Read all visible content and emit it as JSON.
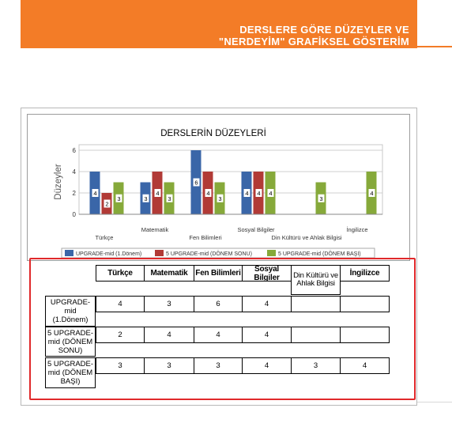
{
  "banner": {
    "line1": "DERSLERE GÖRE DÜZEYLER VE",
    "line2": "\"NERDEYİM\" GRAFİKSEL GÖSTERİM"
  },
  "colors": {
    "banner": "#f37c27",
    "series1": "#3a66a8",
    "series2": "#b13a36",
    "series3": "#86a93a",
    "highlight": "#e0292b"
  },
  "chart_data": {
    "type": "bar",
    "title": "DERSLERİN DÜZEYLERİ",
    "ylabel": "Düzeyler",
    "xlabel": "",
    "ylim": [
      0,
      6
    ],
    "yticks": [
      0,
      2,
      4,
      6
    ],
    "grid": true,
    "legend_position": "bottom",
    "categories": [
      "Türkçe",
      "Matematik",
      "Fen Bilimleri",
      "Sosyal Bilgiler",
      "Din Kültürü ve Ahlak Bilgisi",
      "İngilizce"
    ],
    "series": [
      {
        "name": "UPGRADE-mid (1.Dönem)",
        "values": [
          4,
          3,
          6,
          4,
          null,
          null
        ]
      },
      {
        "name": "5 UPGRADE-mid (DÖNEM SONU)",
        "values": [
          2,
          4,
          4,
          4,
          null,
          null
        ]
      },
      {
        "name": "5 UPGRADE-mid (DÖNEM BAŞI)",
        "values": [
          3,
          3,
          3,
          4,
          3,
          4
        ]
      }
    ]
  },
  "table": {
    "headers": [
      "Türkçe",
      "Matematik",
      "Fen Bilimleri",
      "Sosyal Bilgiler",
      "Din Kültürü ve Ahlak Bilgisi",
      "İngilizce"
    ],
    "rows": [
      {
        "label": "UPGRADE-mid (1.Dönem)",
        "cells": [
          "4",
          "3",
          "6",
          "4",
          "",
          ""
        ]
      },
      {
        "label": "5 UPGRADE-mid (DÖNEM SONU)",
        "cells": [
          "2",
          "4",
          "4",
          "4",
          "",
          ""
        ]
      },
      {
        "label": "5 UPGRADE-mid (DÖNEM BAŞI)",
        "cells": [
          "3",
          "3",
          "3",
          "4",
          "3",
          "4"
        ]
      }
    ]
  }
}
